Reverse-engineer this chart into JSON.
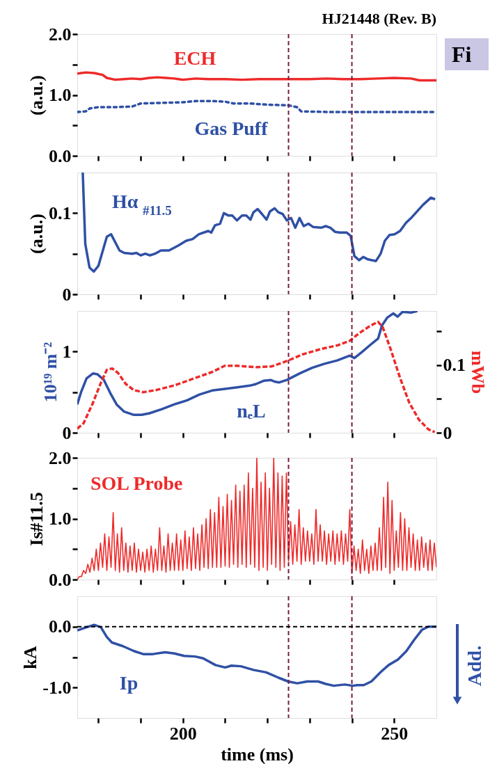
{
  "chart_data": [
    {
      "type": "line",
      "title": "HJ21448 (Rev. B)",
      "ylabel": "(a.u.)",
      "annotations": [
        "Fi"
      ],
      "tick_labels": "y",
      "xlim": [
        175,
        260
      ],
      "xticks": [
        {
          "value": 180,
          "label": null
        },
        {
          "value": 190,
          "label": null
        },
        {
          "value": 200,
          "label": null
        },
        {
          "value": 210,
          "label": null
        },
        {
          "value": 220,
          "label": null
        },
        {
          "value": 230,
          "label": null
        },
        {
          "value": 240,
          "label": null
        },
        {
          "value": 250,
          "label": null
        }
      ],
      "ylim": [
        0,
        2
      ],
      "yticks": [
        {
          "value": 0,
          "label": "0.0"
        },
        {
          "value": 0.5,
          "label": null
        },
        {
          "value": 1,
          "label": "1.0"
        },
        {
          "value": 1.5,
          "label": null
        },
        {
          "value": 2,
          "label": "2.0"
        }
      ],
      "ref_lines": [
        {
          "axis": "x",
          "value": 225,
          "color": "#7a1a45",
          "line_style": "dashed"
        },
        {
          "axis": "x",
          "value": 240,
          "color": "#7a1a45",
          "line_style": "dashed"
        }
      ],
      "series": [
        {
          "name": "ECH",
          "color": "#ee2a2a",
          "line_style": "solid",
          "x": [
            175,
            177,
            179,
            181,
            182,
            184,
            186,
            188,
            190,
            192,
            194,
            196,
            198,
            200,
            203,
            206,
            210,
            214,
            218,
            222,
            226,
            230,
            234,
            238,
            242,
            246,
            250,
            254,
            256,
            258,
            260
          ],
          "values": [
            1.35,
            1.37,
            1.36,
            1.33,
            1.28,
            1.25,
            1.26,
            1.27,
            1.26,
            1.28,
            1.29,
            1.28,
            1.27,
            1.25,
            1.27,
            1.26,
            1.26,
            1.25,
            1.26,
            1.26,
            1.26,
            1.26,
            1.27,
            1.26,
            1.26,
            1.27,
            1.28,
            1.27,
            1.24,
            1.24,
            1.24
          ]
        },
        {
          "name": "Gas Puff",
          "color": "#2f50a5",
          "line_style": "dotted",
          "x": [
            175,
            177,
            178,
            180,
            184,
            188,
            190,
            195,
            200,
            203,
            207,
            210,
            212,
            216,
            220,
            225,
            227,
            228,
            235,
            245,
            255,
            260
          ],
          "values": [
            0.72,
            0.73,
            0.78,
            0.8,
            0.8,
            0.81,
            0.86,
            0.87,
            0.88,
            0.9,
            0.9,
            0.89,
            0.86,
            0.86,
            0.84,
            0.83,
            0.8,
            0.73,
            0.72,
            0.72,
            0.72,
            0.72
          ]
        }
      ]
    },
    {
      "type": "line",
      "ylabel": "(a.u.)",
      "tick_labels": "y",
      "xlim": [
        175,
        260
      ],
      "xticks": [
        {
          "value": 180,
          "label": null
        },
        {
          "value": 190,
          "label": null
        },
        {
          "value": 200,
          "label": null
        },
        {
          "value": 210,
          "label": null
        },
        {
          "value": 220,
          "label": null
        },
        {
          "value": 230,
          "label": null
        },
        {
          "value": 240,
          "label": null
        },
        {
          "value": 250,
          "label": null
        }
      ],
      "ylim": [
        0,
        0.15
      ],
      "yticks": [
        0,
        {
          "value": 0.05,
          "label": null
        },
        0.1
      ],
      "ref_lines": [
        {
          "axis": "x",
          "value": 225,
          "color": "#7a1a45",
          "line_style": "dashed"
        },
        {
          "axis": "x",
          "value": 240,
          "color": "#7a1a45",
          "line_style": "dashed"
        }
      ],
      "series": [
        {
          "name": "Hα$_{#11.5}$",
          "color": "#2f50a5",
          "line_style": "solid",
          "x": [
            176.3,
            176.9,
            177.9,
            178.9,
            180,
            182,
            183,
            185,
            186.1,
            188,
            189,
            190,
            191.1,
            192.2,
            193.4,
            194.8,
            196.7,
            198.9,
            200.8,
            202.3,
            203.8,
            206,
            206.7,
            207.6,
            208.8,
            209.7,
            210.8,
            211.7,
            212.8,
            214,
            215,
            216,
            216.7,
            217.7,
            218.7,
            219.8,
            220.6,
            221.7,
            222.6,
            223.6,
            224.6,
            225.6,
            226.6,
            227.6,
            228.6,
            229.7,
            230.8,
            232.7,
            233.8,
            234.9,
            236,
            237.1,
            238.8,
            239.7,
            240.6,
            241.7,
            242.7,
            243.8,
            245.7,
            246.8,
            247.8,
            248.9,
            250.1,
            251.4,
            252.8,
            254.2,
            256.8,
            258.7,
            259.7
          ],
          "values": [
            0.15,
            0.062,
            0.033,
            0.028,
            0.035,
            0.071,
            0.074,
            0.054,
            0.051,
            0.05,
            0.051,
            0.048,
            0.05,
            0.048,
            0.05,
            0.054,
            0.054,
            0.06,
            0.066,
            0.068,
            0.074,
            0.078,
            0.076,
            0.085,
            0.087,
            0.1,
            0.097,
            0.097,
            0.091,
            0.097,
            0.097,
            0.092,
            0.101,
            0.105,
            0.099,
            0.092,
            0.102,
            0.106,
            0.101,
            0.099,
            0.091,
            0.094,
            0.082,
            0.094,
            0.084,
            0.087,
            0.083,
            0.082,
            0.084,
            0.082,
            0.077,
            0.076,
            0.076,
            0.072,
            0.047,
            0.042,
            0.046,
            0.043,
            0.041,
            0.05,
            0.066,
            0.073,
            0.074,
            0.078,
            0.088,
            0.095,
            0.11,
            0.119,
            0.117
          ]
        }
      ]
    },
    {
      "type": "line",
      "ylabel": "10¹⁹ m⁻²",
      "y2label": "mWb",
      "tick_labels": "y",
      "xlim": [
        175,
        260
      ],
      "xticks": [
        {
          "value": 180,
          "label": null
        },
        {
          "value": 190,
          "label": null
        },
        {
          "value": 200,
          "label": null
        },
        {
          "value": 210,
          "label": null
        },
        {
          "value": 220,
          "label": null
        },
        {
          "value": 230,
          "label": null
        },
        {
          "value": 240,
          "label": null
        },
        {
          "value": 250,
          "label": null
        }
      ],
      "ylim": [
        0,
        1.5
      ],
      "yticks": [
        0,
        {
          "value": 0.5,
          "label": null
        },
        1
      ],
      "y2lim": [
        0,
        0.18
      ],
      "y2ticks": [
        0,
        {
          "value": 0.05,
          "label": null
        },
        0.1,
        {
          "value": 0.15,
          "label": null
        }
      ],
      "ref_lines": [
        {
          "axis": "x",
          "value": 225,
          "color": "#7a1a45",
          "line_style": "dashed"
        },
        {
          "axis": "x",
          "value": 240,
          "color": "#7a1a45",
          "line_style": "dashed"
        }
      ],
      "series": [
        {
          "name": "nₑL",
          "color": "#2f50a5",
          "line_style": "solid",
          "x": [
            175,
            175.9,
            177.2,
            178.7,
            179.8,
            181.3,
            182.8,
            184.3,
            186.1,
            188.4,
            190.2,
            192.1,
            195,
            198,
            201,
            203.9,
            206.9,
            209.9,
            212.8,
            215.8,
            217.3,
            219.1,
            220.8,
            221.7,
            222.8,
            224.6,
            227.6,
            230.6,
            233.5,
            236.5,
            239.5,
            240.6,
            242.5,
            244.3,
            246.2,
            247.1,
            248.4,
            249.8,
            250.8,
            252,
            254,
            255.5
          ],
          "values": [
            0.35,
            0.5,
            0.67,
            0.73,
            0.72,
            0.65,
            0.49,
            0.35,
            0.26,
            0.22,
            0.22,
            0.24,
            0.29,
            0.35,
            0.4,
            0.47,
            0.52,
            0.54,
            0.56,
            0.58,
            0.6,
            0.64,
            0.65,
            0.63,
            0.62,
            0.65,
            0.73,
            0.8,
            0.85,
            0.89,
            0.95,
            0.92,
            1.0,
            1.08,
            1.16,
            1.32,
            1.42,
            1.47,
            1.43,
            1.49,
            1.48,
            1.5
          ]
        },
        {
          "color": "#ee2a2a",
          "line_style": "dashed",
          "axis": "y2",
          "x": [
            175,
            176.5,
            178.7,
            180.6,
            182,
            183.3,
            184.7,
            186.5,
            188.4,
            190.6,
            193.6,
            198,
            202.5,
            207,
            209.9,
            212.8,
            217.3,
            221,
            224.6,
            228.4,
            232.8,
            236.5,
            239.5,
            241.7,
            244.3,
            246.2,
            247.3,
            249.2,
            251.4,
            253.6,
            255.9,
            258.1,
            259.6
          ],
          "values": [
            0.006,
            0.014,
            0.044,
            0.074,
            0.093,
            0.095,
            0.088,
            0.072,
            0.063,
            0.06,
            0.063,
            0.07,
            0.08,
            0.09,
            0.099,
            0.099,
            0.097,
            0.098,
            0.106,
            0.116,
            0.124,
            0.129,
            0.136,
            0.147,
            0.158,
            0.164,
            0.156,
            0.123,
            0.081,
            0.044,
            0.019,
            0.005,
            0.001
          ]
        }
      ]
    },
    {
      "type": "line",
      "ylabel": "Is#11.5",
      "tick_labels": "y",
      "xlim": [
        175,
        260
      ],
      "xticks": [
        {
          "value": 180,
          "label": null
        },
        {
          "value": 190,
          "label": null
        },
        {
          "value": 200,
          "label": null
        },
        {
          "value": 210,
          "label": null
        },
        {
          "value": 220,
          "label": null
        },
        {
          "value": 230,
          "label": null
        },
        {
          "value": 240,
          "label": null
        },
        {
          "value": 250,
          "label": null
        }
      ],
      "ylim": [
        0,
        2
      ],
      "yticks": [
        {
          "value": 0,
          "label": "0.0"
        },
        {
          "value": 0.5,
          "label": null
        },
        {
          "value": 1,
          "label": "1.0"
        },
        {
          "value": 1.5,
          "label": null
        },
        {
          "value": 2,
          "label": "2.0"
        }
      ],
      "ref_lines": [
        {
          "axis": "x",
          "value": 225,
          "color": "#7a1a45",
          "line_style": "dashed"
        },
        {
          "axis": "x",
          "value": 240,
          "color": "#7a1a45",
          "line_style": "dashed"
        }
      ],
      "series": [
        {
          "name": "SOL Probe",
          "color": "#ee2a2a",
          "line_style": "solid",
          "x": [
            175,
            175.5,
            176,
            176.5,
            177,
            177.5,
            178,
            178.5,
            179,
            179.5,
            180,
            180.5,
            181,
            181.5,
            182,
            182.5,
            183,
            183.5,
            184,
            184.5,
            185,
            185.5,
            186,
            186.5,
            187,
            187.5,
            188,
            188.5,
            189,
            189.5,
            190,
            190.5,
            191,
            191.5,
            192,
            192.5,
            193,
            193.5,
            194,
            194.5,
            195,
            195.5,
            196,
            196.5,
            197,
            197.5,
            198,
            198.5,
            199,
            199.5,
            200,
            200.5,
            201,
            201.5,
            202,
            202.5,
            203,
            203.5,
            204,
            204.5,
            205,
            205.5,
            206,
            206.5,
            207,
            207.5,
            208,
            208.5,
            209,
            209.5,
            210,
            210.5,
            211,
            211.5,
            212,
            212.5,
            213,
            213.5,
            214,
            214.5,
            215,
            215.5,
            216,
            216.5,
            217,
            217.5,
            218,
            218.5,
            219,
            219.5,
            220,
            220.5,
            221,
            221.5,
            222,
            222.5,
            223,
            223.5,
            224,
            224.5,
            225,
            225.5,
            226,
            226.5,
            227,
            227.5,
            228,
            228.5,
            229,
            229.5,
            230,
            230.5,
            231,
            231.5,
            232,
            232.5,
            233,
            233.5,
            234,
            234.5,
            235,
            235.5,
            236,
            236.5,
            237,
            237.5,
            238,
            238.5,
            239,
            239.5,
            240,
            240.5,
            241,
            241.5,
            242,
            242.5,
            243,
            243.5,
            244,
            244.5,
            245,
            245.5,
            246,
            246.5,
            247,
            247.5,
            248,
            248.5,
            249,
            249.5,
            250,
            250.5,
            251,
            251.5,
            252,
            252.5,
            253,
            253.5,
            254,
            254.5,
            255,
            255.5,
            256,
            256.5,
            257,
            257.5,
            258,
            258.5,
            259,
            259.5,
            260
          ],
          "values": [
            0,
            0.05,
            0.05,
            0.15,
            0.1,
            0.25,
            0.12,
            0.35,
            0.15,
            0.5,
            0.15,
            0.6,
            0.2,
            0.75,
            0.15,
            0.7,
            0.2,
            1.1,
            0.15,
            0.75,
            0.12,
            0.85,
            0.15,
            0.6,
            0.12,
            0.55,
            0.15,
            0.6,
            0.12,
            0.5,
            0.15,
            0.45,
            0.12,
            0.5,
            0.15,
            0.55,
            0.12,
            0.5,
            0.15,
            0.85,
            0.15,
            0.55,
            0.12,
            0.75,
            0.15,
            0.6,
            0.15,
            0.75,
            0.15,
            0.65,
            0.15,
            0.8,
            0.18,
            0.7,
            0.15,
            0.85,
            0.18,
            0.75,
            0.15,
            0.9,
            0.2,
            1.0,
            0.18,
            1.15,
            0.2,
            1.1,
            0.2,
            1.35,
            0.2,
            1.2,
            0.22,
            1.4,
            0.2,
            1.3,
            0.25,
            1.55,
            0.2,
            1.45,
            0.25,
            1.55,
            0.2,
            1.75,
            0.25,
            1.5,
            0.2,
            2.0,
            0.15,
            1.6,
            0.2,
            1.75,
            0.15,
            1.5,
            0.25,
            2.0,
            0.2,
            1.75,
            0.15,
            1.7,
            0.2,
            1.75,
            0.3,
            0.95,
            0.25,
            0.9,
            0.3,
            1.15,
            0.25,
            0.85,
            0.3,
            0.8,
            0.3,
            0.75,
            0.25,
            1.15,
            0.3,
            0.9,
            0.3,
            0.8,
            0.25,
            0.75,
            0.3,
            0.8,
            0.25,
            0.75,
            0.3,
            0.8,
            0.25,
            0.75,
            0.3,
            1.15,
            0.1,
            0.55,
            0.15,
            0.5,
            0.1,
            0.65,
            0.15,
            0.5,
            0.1,
            0.55,
            0.15,
            0.6,
            0.15,
            0.85,
            0.15,
            1.35,
            0.2,
            1.6,
            0.1,
            1.3,
            0.15,
            0.8,
            0.2,
            1.1,
            0.15,
            1.0,
            0.15,
            0.85,
            0.2,
            0.75,
            0.15,
            0.65,
            0.15,
            0.7,
            0.2,
            0.6,
            0.15,
            0.65,
            0.15,
            0.6,
            0.2
          ]
        }
      ]
    },
    {
      "type": "line",
      "xlabel": "time (ms)",
      "ylabel": "kA",
      "annotations": [
        "Add."
      ],
      "xlim": [
        175,
        260
      ],
      "xticks": [
        {
          "value": 180,
          "label": null
        },
        {
          "value": 190,
          "label": null
        },
        200,
        {
          "value": 210,
          "label": null
        },
        {
          "value": 220,
          "label": null
        },
        {
          "value": 230,
          "label": null
        },
        {
          "value": 240,
          "label": null
        },
        250
      ],
      "ylim": [
        -1.5,
        0.5
      ],
      "yticks": [
        {
          "value": -1,
          "label": "-1.0"
        },
        {
          "value": -0.5,
          "label": null
        },
        {
          "value": 0,
          "label": "0.0"
        }
      ],
      "ref_lines": [
        {
          "axis": "x",
          "value": 225,
          "color": "#7a1a45",
          "line_style": "dashed"
        },
        {
          "axis": "x",
          "value": 240,
          "color": "#7a1a45",
          "line_style": "dashed"
        },
        {
          "axis": "y",
          "value": 0,
          "color": "#000000",
          "line_style": "dashed"
        }
      ],
      "series": [
        {
          "name": "Ip",
          "color": "#2f50a5",
          "line_style": "solid",
          "x": [
            175,
            177.2,
            179,
            180.6,
            182,
            183.2,
            185.8,
            188.4,
            190.6,
            192.9,
            195.8,
            198,
            200.3,
            202.9,
            204.8,
            207.7,
            210,
            211.5,
            213.7,
            216.7,
            219.7,
            222.7,
            224.9,
            227.1,
            229.4,
            232,
            233.8,
            235.7,
            238.3,
            240.2,
            241.3,
            242.8,
            244.6,
            246.9,
            248.7,
            250.9,
            252.9,
            254.7,
            256.6,
            258.1,
            260
          ],
          "values": [
            -0.06,
            -0.01,
            0.03,
            -0.01,
            -0.17,
            -0.26,
            -0.32,
            -0.4,
            -0.45,
            -0.45,
            -0.42,
            -0.44,
            -0.48,
            -0.49,
            -0.52,
            -0.63,
            -0.67,
            -0.64,
            -0.65,
            -0.71,
            -0.75,
            -0.84,
            -0.9,
            -0.93,
            -0.9,
            -0.9,
            -0.94,
            -0.97,
            -0.95,
            -0.97,
            -0.96,
            -0.96,
            -0.9,
            -0.74,
            -0.63,
            -0.54,
            -0.4,
            -0.22,
            -0.05,
            0.0,
            0.0
          ]
        }
      ]
    }
  ]
}
